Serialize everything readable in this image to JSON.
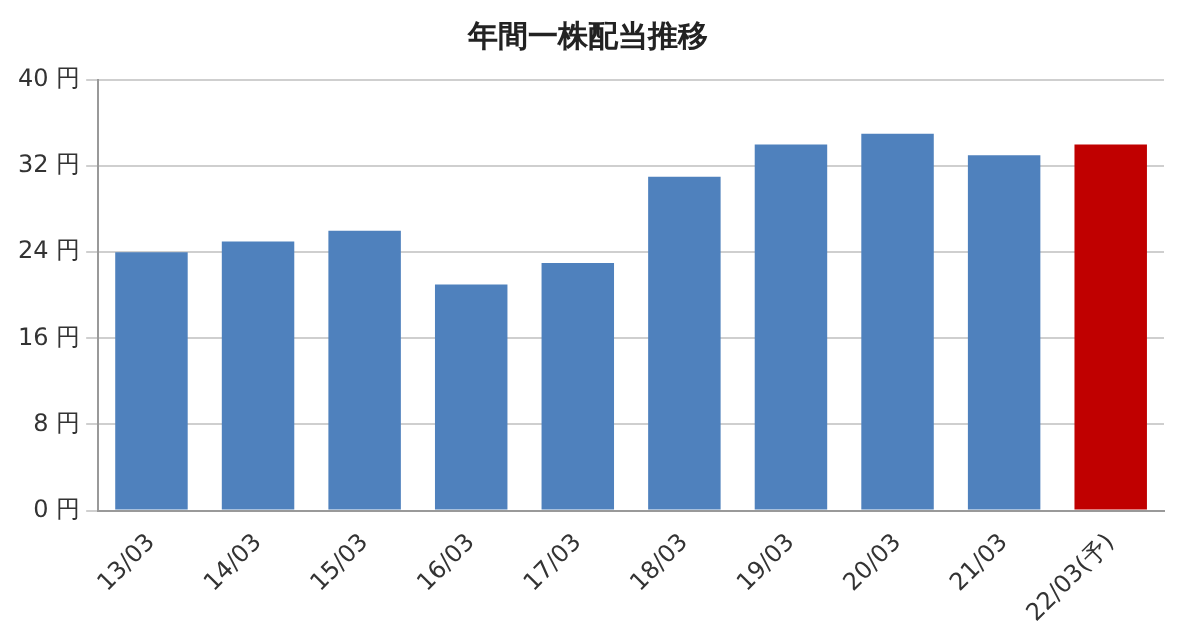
{
  "chart_data": {
    "type": "bar",
    "title": "年間一株配当推移",
    "categories": [
      "13/03",
      "14/03",
      "15/03",
      "16/03",
      "17/03",
      "18/03",
      "19/03",
      "20/03",
      "21/03",
      "22/03(予)"
    ],
    "values": [
      24,
      25,
      26,
      21,
      23,
      31,
      34,
      35,
      33,
      34
    ],
    "colors": [
      "#4f81bd",
      "#4f81bd",
      "#4f81bd",
      "#4f81bd",
      "#4f81bd",
      "#4f81bd",
      "#4f81bd",
      "#4f81bd",
      "#4f81bd",
      "#c00000"
    ],
    "ylim": [
      0,
      40
    ],
    "yticks": [
      {
        "value": 0,
        "label": "0 円"
      },
      {
        "value": 8,
        "label": "8 円"
      },
      {
        "value": 16,
        "label": "16 円"
      },
      {
        "value": 24,
        "label": "24 円"
      },
      {
        "value": 32,
        "label": "32 円"
      },
      {
        "value": 40,
        "label": "40 円"
      }
    ],
    "grid": "y",
    "legend": false
  }
}
